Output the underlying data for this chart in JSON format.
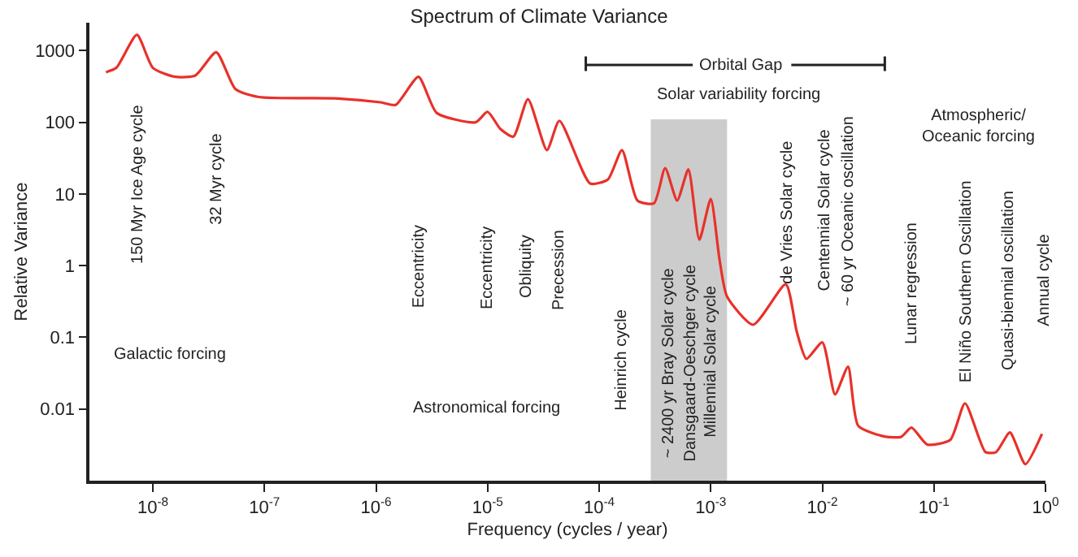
{
  "chart_data": {
    "type": "line",
    "title": "Spectrum of Climate Variance",
    "xlabel": "Frequency (cycles / year)",
    "ylabel": "Relative Variance",
    "log": "xy",
    "xlim": [
      2.7e-09,
      1
    ],
    "ylim": [
      0.001,
      2450
    ],
    "xticks": [
      {
        "value": 1e-08,
        "label": "10$^{-8}$"
      },
      {
        "value": 1e-07,
        "label": "10$^{-7}$"
      },
      {
        "value": 1e-06,
        "label": "10$^{-6}$"
      },
      {
        "value": 1e-05,
        "label": "10$^{-5}$"
      },
      {
        "value": 0.0001,
        "label": "10$^{-4}$"
      },
      {
        "value": 0.001,
        "label": "10$^{-3}$"
      },
      {
        "value": 0.01,
        "label": "10$^{-2}$"
      },
      {
        "value": 0.1,
        "label": "10$^{-1}$"
      },
      {
        "value": 1,
        "label": "10$^{0}$"
      }
    ],
    "yticks": [
      0.01,
      0.1,
      1,
      10,
      100,
      1000
    ],
    "x": [
      3.8e-09,
      4.7e-09,
      7.2e-09,
      1e-08,
      1.6e-08,
      2.4e-08,
      3.7e-08,
      5.5e-08,
      8.9e-08,
      4.6e-07,
      1.1e-06,
      1.5e-06,
      2.4e-06,
      3.5e-06,
      7.8e-06,
      1e-05,
      1.3e-05,
      1.7e-05,
      2.3e-05,
      3.4e-05,
      4.4e-05,
      8.3e-05,
      0.00012,
      0.00016,
      0.00022,
      0.00031,
      0.00039,
      0.0005,
      0.00063,
      0.00079,
      0.001,
      0.0012,
      0.0014,
      0.0024,
      0.0047,
      0.0059,
      0.0072,
      0.01,
      0.013,
      0.017,
      0.021,
      0.037,
      0.051,
      0.063,
      0.087,
      0.14,
      0.19,
      0.29,
      0.36,
      0.48,
      0.66,
      0.93
    ],
    "series": [
      {
        "color": "#e8312a",
        "values": [
          500,
          575,
          1660,
          575,
          430,
          450,
          950,
          290,
          225,
          215,
          190,
          175,
          430,
          135,
          100,
          140,
          81,
          63,
          210,
          41,
          105,
          14,
          16,
          41,
          8.1,
          7.4,
          23,
          8.1,
          22,
          2.3,
          8.5,
          1.2,
          0.37,
          0.15,
          0.55,
          0.12,
          0.05,
          0.085,
          0.016,
          0.039,
          0.0058,
          0.0041,
          0.0041,
          0.0055,
          0.0032,
          0.0037,
          0.012,
          0.0025,
          0.0025,
          0.0047,
          0.0017,
          0.0045
        ]
      }
    ],
    "bands": [
      {
        "axis": "x",
        "from": 0.00029,
        "to": 0.0014,
        "color": "#cccccc"
      }
    ],
    "annotations": [
      "150 Myr Ice Age cycle",
      "32 Myr cycle",
      "Eccentricity",
      "Eccentricity",
      "Obliquity",
      "Precession",
      "Heinrich cycle",
      "~ 2400 yr Bray Solar cycle",
      "Dansgaard-Oeschger cycle",
      "Millennial Solar cycle",
      "de Vries Solar cycle",
      "Centennial Solar cycle",
      "~ 60 yr Oceanic oscillation",
      "Lunar regression",
      "El Niño Southern Oscillation",
      "Quasi-biennial oscillation",
      "Annual cycle",
      "Orbital Gap",
      "Galactic forcing",
      "Astronomical forcing",
      "Solar variability forcing",
      "Atmospheric/\nOceanic forcing"
    ]
  }
}
